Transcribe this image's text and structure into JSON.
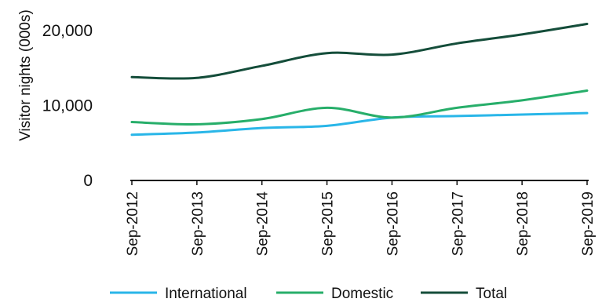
{
  "chart_data": {
    "type": "line",
    "x": [
      "Sep-2012",
      "Sep-2013",
      "Sep-2014",
      "Sep-2015",
      "Sep-2016",
      "Sep-2017",
      "Sep-2018",
      "Sep-2019"
    ],
    "ylabel": "Visitor nights (000s)",
    "ylim": [
      0,
      22000
    ],
    "yticks": [
      0,
      10000,
      20000
    ],
    "ytick_labels": [
      "0",
      "10,000",
      "20,000"
    ],
    "grid": false,
    "legend_position": "bottom",
    "series": [
      {
        "name": "International",
        "color": "#29b6e8",
        "values": [
          6100,
          6400,
          7000,
          7300,
          8400,
          8600,
          8800,
          9000
        ]
      },
      {
        "name": "Domestic",
        "color": "#27ae6a",
        "values": [
          7800,
          7500,
          8200,
          9700,
          8400,
          9700,
          10700,
          12000
        ]
      },
      {
        "name": "Total",
        "color": "#144d3a",
        "values": [
          13800,
          13700,
          15300,
          17000,
          16800,
          18300,
          19500,
          20900
        ]
      }
    ]
  }
}
